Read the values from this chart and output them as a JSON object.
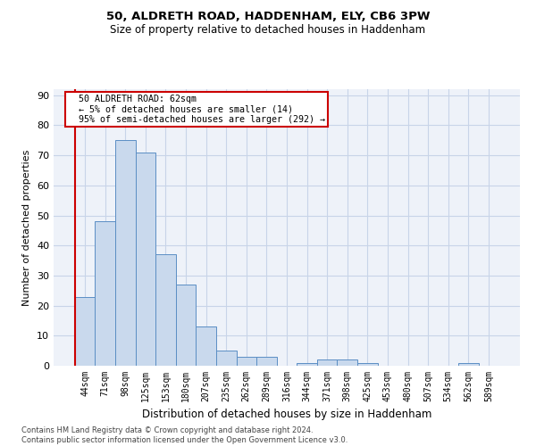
{
  "title1": "50, ALDRETH ROAD, HADDENHAM, ELY, CB6 3PW",
  "title2": "Size of property relative to detached houses in Haddenham",
  "xlabel": "Distribution of detached houses by size in Haddenham",
  "ylabel": "Number of detached properties",
  "categories": [
    "44sqm",
    "71sqm",
    "98sqm",
    "125sqm",
    "153sqm",
    "180sqm",
    "207sqm",
    "235sqm",
    "262sqm",
    "289sqm",
    "316sqm",
    "344sqm",
    "371sqm",
    "398sqm",
    "425sqm",
    "453sqm",
    "480sqm",
    "507sqm",
    "534sqm",
    "562sqm",
    "589sqm"
  ],
  "values": [
    23,
    48,
    75,
    71,
    37,
    27,
    13,
    5,
    3,
    3,
    0,
    1,
    2,
    2,
    1,
    0,
    0,
    0,
    0,
    1,
    0
  ],
  "bar_color": "#c9d9ed",
  "bar_edge_color": "#5b8ec4",
  "annotation_text_line1": "50 ALDRETH ROAD: 62sqm",
  "annotation_text_line2": "← 5% of detached houses are smaller (14)",
  "annotation_text_line3": "95% of semi-detached houses are larger (292) →",
  "annotation_box_color": "#ffffff",
  "annotation_box_edge_color": "#cc0000",
  "vline_color": "#cc0000",
  "grid_color": "#c8d4e8",
  "background_color": "#eef2f9",
  "footnote": "Contains HM Land Registry data © Crown copyright and database right 2024.\nContains public sector information licensed under the Open Government Licence v3.0.",
  "ylim": [
    0,
    92
  ],
  "yticks": [
    0,
    10,
    20,
    30,
    40,
    50,
    60,
    70,
    80,
    90
  ]
}
